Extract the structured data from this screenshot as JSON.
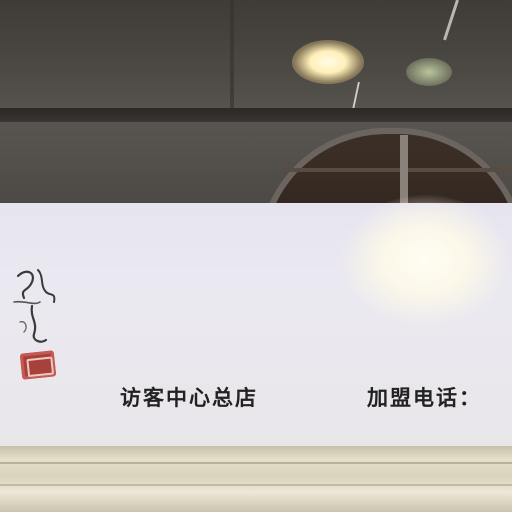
{
  "sign": {
    "left_text": "访客中心总店",
    "right_text": "加盟电话："
  },
  "colors": {
    "sign_board": "#e9e7ee",
    "text": "#222222",
    "seal": "#a8413a",
    "ceiling": "#45413c"
  }
}
